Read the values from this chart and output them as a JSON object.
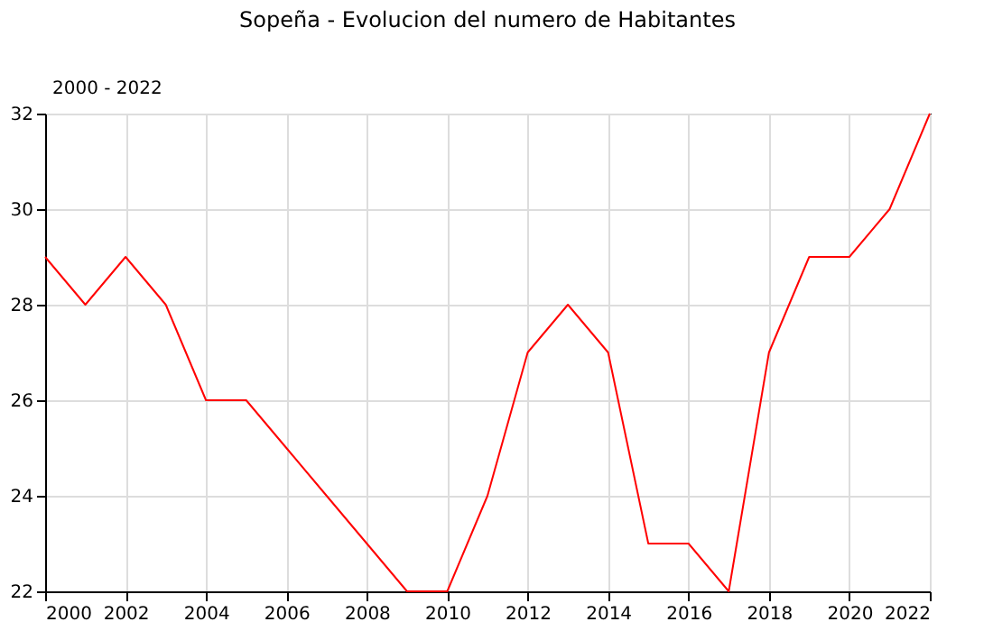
{
  "chart_data": {
    "type": "line",
    "title": "Sopeña - Evolucion del numero de Habitantes",
    "annotations": [
      "2000 - 2022"
    ],
    "x": [
      2000,
      2001,
      2002,
      2003,
      2004,
      2005,
      2006,
      2007,
      2008,
      2009,
      2010,
      2011,
      2012,
      2013,
      2014,
      2015,
      2016,
      2017,
      2018,
      2019,
      2020,
      2021,
      2022
    ],
    "series": [
      {
        "color": "#ff0000",
        "values": [
          29,
          28,
          29,
          28,
          26,
          26,
          25,
          24,
          23,
          22,
          22,
          24,
          27,
          28,
          27,
          23,
          23,
          22,
          27,
          29,
          29,
          30,
          32
        ]
      }
    ],
    "xlim": [
      2000,
      2022
    ],
    "xticks": [
      2000,
      2002,
      2004,
      2006,
      2008,
      2010,
      2012,
      2014,
      2016,
      2018,
      2020,
      2022
    ],
    "ylim": [
      22,
      32
    ],
    "yticks": [
      22,
      24,
      26,
      28,
      30,
      32
    ],
    "grid": true,
    "marker": "none",
    "line_style": "solid"
  }
}
